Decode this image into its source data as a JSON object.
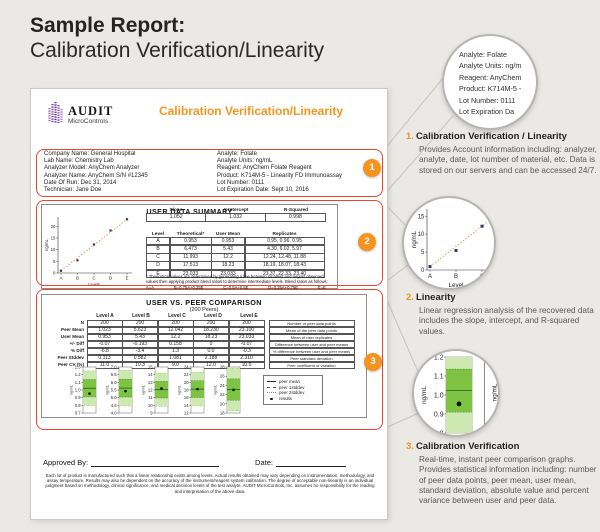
{
  "page": {
    "title_line1": "Sample Report:",
    "title_line2": "Calibration Verification/Linearity"
  },
  "colors": {
    "accent_orange": "#f6921e",
    "report_title_orange": "#f7941d",
    "annotation_red": "#e8462d",
    "logo_purple": "#6b3f99",
    "green_light": "#cde8b0",
    "green_mid": "#7ec342"
  },
  "report": {
    "logo": {
      "name": "AUDIT",
      "subtitle": "MicroControls"
    },
    "title": "Calibration Verification/Linearity",
    "info_left": [
      "Company Name: General Hospital",
      "Lab Name: Chemistry Lab",
      "Analyzer Model: AnyChem Analyzer",
      "Analyzer Name: AnyChem S/N #12345",
      "Date Of Run: Dec 31, 2014",
      "Technician: Jane Doe"
    ],
    "info_right": [
      "Analyte: Folate",
      "Analyte Units: ng/mL",
      "Reagent: AnyChem Folate Reagent",
      "Product: K714M-5 - Linearity FD Immunoassay",
      "Lot Number: 0111",
      "Lot Expiration Date: Sept 10, 2016"
    ],
    "uds": {
      "title": "USER DATA SUMMARY",
      "reg_headers": [
        "Slope",
        "Y-Intercept",
        "R-Squared"
      ],
      "reg_values": [
        "1.052",
        "1.032",
        "0.998"
      ],
      "level_headers": [
        "Level",
        "Theoretical*",
        "User Mean",
        "Replicates"
      ],
      "levels": [
        {
          "level": "A",
          "theoretical": "0.953",
          "user_mean": "0.953",
          "replicates": "0.95, 0.96, 0.95"
        },
        {
          "level": "B",
          "theoretical": "6.473",
          "user_mean": "5.43",
          "replicates": "4.30, 6.02, 5.97"
        },
        {
          "level": "C",
          "theoretical": "11.993",
          "user_mean": "12.2",
          "replicates": "12.24, 12.48, 11.88"
        },
        {
          "level": "D",
          "theoretical": "17.513",
          "user_mean": "18.23",
          "replicates": "18.19, 18.07, 18.43"
        },
        {
          "level": "E",
          "theoretical": "23.033",
          "user_mean": "23.033",
          "replicates": "23.37, 22.33, 23.40"
        }
      ],
      "footnote": "* Theoretical values are determined by generating a line between smallest and largest observed values then applying product blend ratios to determine intermediate levels. Blend ratios as follows:",
      "ratios": [
        "A=A",
        "B=0.75A+0.25E",
        "C=0.5A+0.5E",
        "D=0.25A+0.75E",
        "E=E"
      ]
    },
    "uvp": {
      "title": "USER VS. PEER COMPARISON",
      "subtitle": "(200 Peers)",
      "col_headers": [
        "Level A",
        "Level B",
        "Level C",
        "Level D",
        "Level E"
      ],
      "rows": [
        {
          "label": "N",
          "values": [
            "200",
            "200",
            "200",
            "200",
            "200"
          ],
          "desc": "Number of peer data points"
        },
        {
          "label": "Peer Mean",
          "values": [
            "1.023",
            "5.623",
            "12.042",
            "18.230",
            "23.100"
          ],
          "desc": "Mean of the peer data points"
        },
        {
          "label": "User Mean",
          "values": [
            "0.953",
            "5.43",
            "12.2",
            "18.23",
            "23.033"
          ],
          "desc": "Mean of user replicates"
        },
        {
          "label": "+/- Diff",
          "values": [
            "-0.07",
            "-0.193",
            "0.158",
            "0",
            "-0.07"
          ],
          "desc": "Difference between user and peer means"
        },
        {
          "label": "% Diff",
          "values": [
            "-6.8",
            "-3.4",
            "1.3",
            "0.0",
            "-0.3"
          ],
          "desc": "% difference between user and peer means"
        },
        {
          "label": "Peer Stddev",
          "values": [
            "0.113",
            "0.582",
            "1.081",
            "2.188",
            "2.310"
          ],
          "desc": "Peer standard deviation"
        },
        {
          "label": "Peer CV (%)",
          "values": [
            "11.0",
            "10.3",
            "9.0",
            "12.0",
            "10.0"
          ],
          "desc": "Peer coefficient of variation"
        }
      ]
    },
    "approved_label": "Approved By:",
    "date_label": "Date:",
    "disclaimer": "Each lot of product is manufactured such that a linear relationship exists among levels. Actual results obtained may vary depending on instrumentation, methodology, and assay temperature. Results may also be dependent on the accuracy of the instrument/reagent system calibration. The degree of acceptable non-linearity is an individual judgment based on methodology, clinical significance, and medical decision levels of the test analyte. AUDIT MicroControls, Inc. assumes no responsibility for the reading and interpretation of the above data."
  },
  "badges": [
    "1",
    "2",
    "3"
  ],
  "callouts": {
    "magnifier1_lines": [
      "Analyte: Folate",
      "Analyte Units: ng/m",
      "Reagent: AnyChem",
      "Product: K714M-5 -",
      "Lot Number: 0111",
      "Lot Expiration Da"
    ],
    "notes": [
      {
        "num": "1.",
        "title": "Calibration Verification / Linearity",
        "body": "Provides Account information including: analyzer, analyte, date, lot number of material, etc. Data is stored on our servers and can be accessed 24/7."
      },
      {
        "num": "2.",
        "title": "Linearity",
        "body": "Linear regression analysis of the recovered data includes the slope, intercept, and R-squared values."
      },
      {
        "num": "3.",
        "title": "Calibration Verification",
        "body": "Real-time, instant peer comparison graphs. Provides statistical information including: number of peer data points, peer mean, user mean, standard deviation, absolute value and percent variance between user and peer data."
      }
    ]
  },
  "chart_data": [
    {
      "id": "uds-scatter",
      "type": "scatter",
      "categories": [
        "A",
        "B",
        "C",
        "D",
        "E"
      ],
      "values": [
        0.953,
        5.43,
        12.2,
        18.23,
        23.033
      ],
      "xlabel": "Levels",
      "ylabel": "ng/mL",
      "yticks": [
        0,
        5,
        10,
        15,
        20
      ],
      "ylim": [
        0,
        24
      ],
      "trend": "linear-dotted-orange"
    },
    {
      "id": "zoom-scatter",
      "type": "scatter",
      "categories": [
        "A",
        "B",
        "C"
      ],
      "values": [
        0.953,
        5.43,
        12.2
      ],
      "xlabel": "Level",
      "ylabel": "ng/mL",
      "yticks": [
        0,
        5,
        10,
        15
      ],
      "ylim": [
        0,
        17
      ],
      "trend": "linear-dotted-orange"
    },
    {
      "id": "peer-bars",
      "type": "peer-comparison-bars",
      "ylabel": "ng/mL",
      "legend": [
        "peer mean",
        "peer 1stddev",
        "peer 2stddev",
        "results"
      ],
      "charts": [
        {
          "level": "A",
          "ticks": [
            "1.3",
            "1.2",
            "1.1",
            "1.0",
            "0.9",
            "0.8",
            "0.7"
          ],
          "mean": 1.023,
          "sd": 0.113,
          "result": 0.953
        },
        {
          "level": "B",
          "ticks": [
            "7.0",
            "6.5",
            "6.0",
            "5.5",
            "5.0",
            "4.5",
            "4.0"
          ],
          "mean": 5.623,
          "sd": 0.582,
          "result": 5.43
        },
        {
          "level": "C",
          "ticks": [
            "15",
            "14",
            "13",
            "12",
            "11",
            "10",
            "9"
          ],
          "mean": 12.042,
          "sd": 1.081,
          "result": 12.2
        },
        {
          "level": "D",
          "ticks": [
            "24",
            "22",
            "20",
            "18",
            "16",
            "14",
            "12"
          ],
          "mean": 18.23,
          "sd": 2.188,
          "result": 18.23
        },
        {
          "level": "E",
          "ticks": [
            "28",
            "26",
            "24",
            "22",
            "20",
            "18"
          ],
          "mean": 23.1,
          "sd": 2.31,
          "result": 23.033
        }
      ]
    },
    {
      "id": "zoom-peer-bar",
      "type": "peer-comparison-bar",
      "ticks": [
        "1.2",
        "1.1",
        "1.0",
        "0.9",
        "0.8"
      ],
      "mean": 1.023,
      "sd": 0.113,
      "result": 0.953,
      "ylabel": "ng/mL"
    }
  ]
}
